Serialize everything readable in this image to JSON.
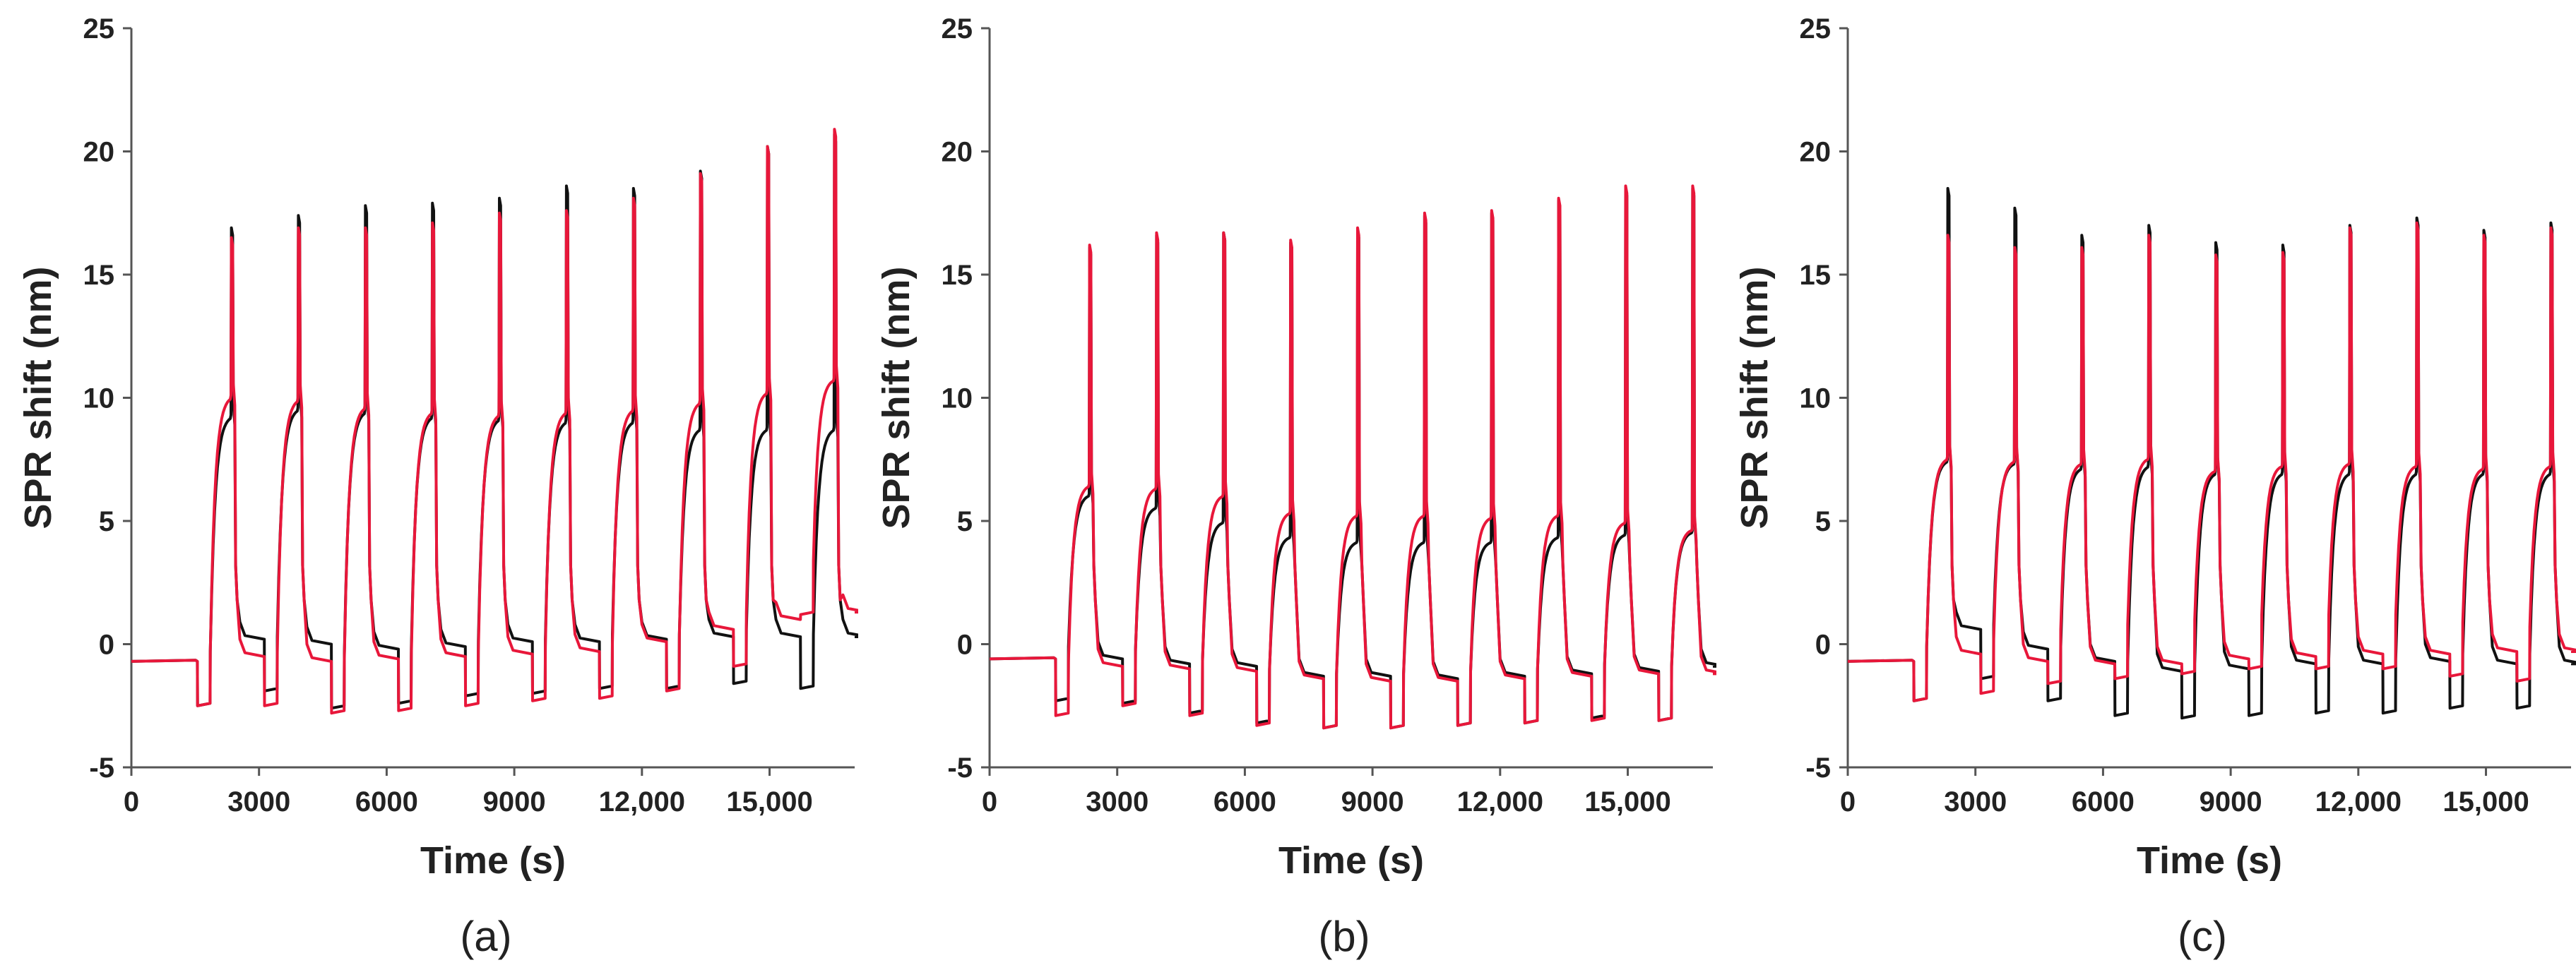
{
  "chart_data": [
    {
      "type": "line",
      "panel_label": "(a)",
      "xlabel": "Time (s)",
      "ylabel": "SPR shift (nm)",
      "xlim": [
        0,
        17000
      ],
      "ylim": [
        -5,
        25
      ],
      "xticks": [
        0,
        3000,
        6000,
        9000,
        12000,
        15000
      ],
      "xtick_labels": [
        "0",
        "3000",
        "6000",
        "9000",
        "12,000",
        "15,000"
      ],
      "yticks": [
        -5,
        0,
        5,
        10,
        15,
        20,
        25
      ],
      "ytick_labels": [
        "-5",
        "0",
        "5",
        "10",
        "15",
        "20",
        "25"
      ],
      "cycle_start": 1550,
      "cycle_period": 1575,
      "cycle_count": 10,
      "baseline_start": -0.7,
      "series": [
        {
          "name": "black",
          "color": "#111111",
          "plateau": [
            9.3,
            9.6,
            9.5,
            9.3,
            9.2,
            9.1,
            9.1,
            8.8,
            8.8,
            8.8
          ],
          "peak": [
            16.9,
            17.4,
            17.8,
            17.9,
            18.1,
            18.6,
            18.5,
            19.2,
            20.2,
            20.7
          ],
          "dip": [
            -2.5,
            -1.9,
            -2.6,
            -2.4,
            -2.1,
            -2.0,
            -1.8,
            -1.8,
            -1.6,
            -1.8
          ],
          "after": [
            0.2,
            0.0,
            -0.2,
            -0.1,
            0.1,
            0.1,
            0.2,
            0.3,
            0.3,
            0.3
          ]
        },
        {
          "name": "red",
          "color": "#e8173a",
          "plateau": [
            10.1,
            10.0,
            9.7,
            9.5,
            9.4,
            9.5,
            9.6,
            9.9,
            10.3,
            10.8
          ],
          "peak": [
            16.5,
            16.9,
            16.9,
            17.1,
            17.5,
            17.6,
            18.1,
            19.1,
            20.2,
            20.9
          ],
          "dip": [
            -2.5,
            -2.5,
            -2.8,
            -2.7,
            -2.5,
            -2.3,
            -2.2,
            -1.9,
            -0.9,
            1.2
          ],
          "after": [
            -0.5,
            -0.7,
            -0.6,
            -0.5,
            -0.4,
            -0.3,
            0.1,
            0.6,
            1.0,
            1.3
          ]
        }
      ]
    },
    {
      "type": "line",
      "panel_label": "(b)",
      "xlabel": "Time (s)",
      "ylabel": "SPR shift (nm)",
      "xlim": [
        0,
        17000
      ],
      "ylim": [
        -5,
        25
      ],
      "xticks": [
        0,
        3000,
        6000,
        9000,
        12000,
        15000
      ],
      "xtick_labels": [
        "0",
        "3000",
        "6000",
        "9000",
        "12,000",
        "15,000"
      ],
      "yticks": [
        -5,
        0,
        5,
        10,
        15,
        20,
        25
      ],
      "ytick_labels": [
        "-5",
        "0",
        "5",
        "10",
        "15",
        "20",
        "25"
      ],
      "cycle_start": 1550,
      "cycle_period": 1575,
      "cycle_count": 10,
      "baseline_start": -0.6,
      "series": [
        {
          "name": "black",
          "color": "#111111",
          "plateau": [
            6.1,
            5.6,
            5.0,
            4.4,
            4.2,
            4.2,
            4.2,
            4.4,
            4.5,
            4.6
          ],
          "peak": [
            16.1,
            16.6,
            16.7,
            16.3,
            16.8,
            17.4,
            17.5,
            18.0,
            18.5,
            18.5
          ],
          "dip": [
            -2.3,
            -2.4,
            -2.8,
            -3.2,
            -3.4,
            -3.4,
            -3.3,
            -3.2,
            -3.0,
            -3.1
          ],
          "after": [
            -0.6,
            -0.8,
            -0.9,
            -1.3,
            -1.3,
            -1.4,
            -1.3,
            -1.2,
            -1.1,
            -0.9
          ]
        },
        {
          "name": "red",
          "color": "#e8173a",
          "plateau": [
            6.5,
            6.4,
            6.1,
            5.4,
            5.3,
            5.3,
            5.2,
            5.3,
            5.0,
            4.7
          ],
          "peak": [
            16.2,
            16.7,
            16.7,
            16.4,
            16.9,
            17.5,
            17.6,
            18.1,
            18.6,
            18.6
          ],
          "dip": [
            -2.9,
            -2.5,
            -2.9,
            -3.3,
            -3.4,
            -3.4,
            -3.3,
            -3.2,
            -3.1,
            -3.1
          ],
          "after": [
            -0.9,
            -1.0,
            -1.1,
            -1.4,
            -1.5,
            -1.5,
            -1.4,
            -1.3,
            -1.2,
            -1.2
          ]
        }
      ]
    },
    {
      "type": "line",
      "panel_label": "(c)",
      "xlabel": "Time (s)",
      "ylabel": "SPR shift (nm)",
      "xlim": [
        0,
        17000
      ],
      "ylim": [
        -5,
        25
      ],
      "xticks": [
        0,
        3000,
        6000,
        9000,
        12000,
        15000
      ],
      "xtick_labels": [
        "0",
        "3000",
        "6000",
        "9000",
        "12,000",
        "15,000"
      ],
      "yticks": [
        -5,
        0,
        5,
        10,
        15,
        20,
        25
      ],
      "ytick_labels": [
        "-5",
        "0",
        "5",
        "10",
        "15",
        "20",
        "25"
      ],
      "cycle_start": 1550,
      "cycle_period": 1575,
      "cycle_count": 10,
      "baseline_start": -0.7,
      "series": [
        {
          "name": "black",
          "color": "#111111",
          "plateau": [
            7.5,
            7.4,
            7.2,
            7.3,
            7.0,
            7.0,
            7.0,
            7.0,
            7.0,
            7.0
          ],
          "peak": [
            18.5,
            17.7,
            16.6,
            17.0,
            16.3,
            16.2,
            17.0,
            17.3,
            16.8,
            17.1
          ],
          "dip": [
            -2.3,
            -1.4,
            -2.3,
            -2.9,
            -3.0,
            -2.9,
            -2.8,
            -2.8,
            -2.6,
            -2.6
          ],
          "after": [
            0.6,
            -0.2,
            -0.7,
            -1.1,
            -1.0,
            -0.8,
            -0.8,
            -0.7,
            -0.8,
            -0.8
          ]
        },
        {
          "name": "red",
          "color": "#e8173a",
          "plateau": [
            7.6,
            7.5,
            7.4,
            7.6,
            7.1,
            7.3,
            7.4,
            7.3,
            7.2,
            7.3
          ],
          "peak": [
            16.6,
            16.1,
            16.1,
            16.6,
            15.8,
            15.9,
            16.9,
            17.1,
            16.6,
            16.9
          ],
          "dip": [
            -2.3,
            -2.0,
            -1.6,
            -1.4,
            -1.2,
            -1.0,
            -1.0,
            -1.0,
            -1.3,
            -1.5
          ],
          "after": [
            -0.4,
            -0.7,
            -0.8,
            -0.8,
            -0.6,
            -0.5,
            -0.4,
            -0.4,
            -0.3,
            -0.3
          ]
        }
      ]
    }
  ]
}
